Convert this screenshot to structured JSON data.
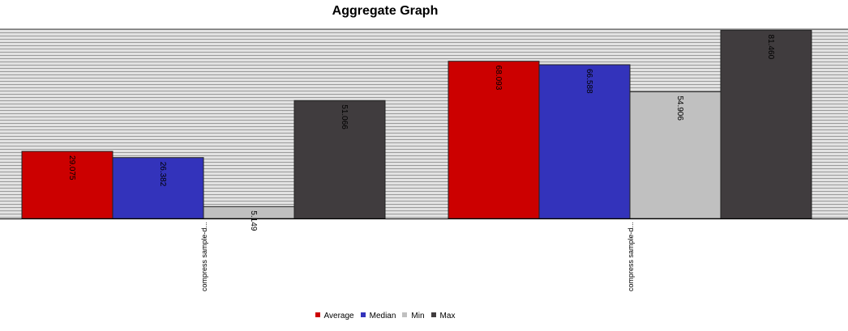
{
  "chart_data": {
    "type": "bar",
    "title": "Aggregate Graph",
    "categories": [
      "compress sample-d...",
      "compress sample-d..."
    ],
    "series": [
      {
        "name": "Average",
        "color": "#cc0000",
        "values": [
          29.075,
          68.093
        ]
      },
      {
        "name": "Median",
        "color": "#3333bb",
        "values": [
          26.382,
          66.588
        ]
      },
      {
        "name": "Min",
        "color": "#c0c0c0",
        "values": [
          5.149,
          54.906
        ]
      },
      {
        "name": "Max",
        "color": "#403c3e",
        "values": [
          51.066,
          81.46
        ]
      }
    ],
    "value_labels": [
      [
        "29.075",
        "68.093"
      ],
      [
        "26.382",
        "66.588"
      ],
      [
        "5.149",
        "54.906"
      ],
      [
        "51.066",
        "81.460"
      ]
    ],
    "ylim": [
      0,
      82
    ],
    "grid": true,
    "legend": "bottom",
    "plot_background": "#e0e0e0"
  }
}
